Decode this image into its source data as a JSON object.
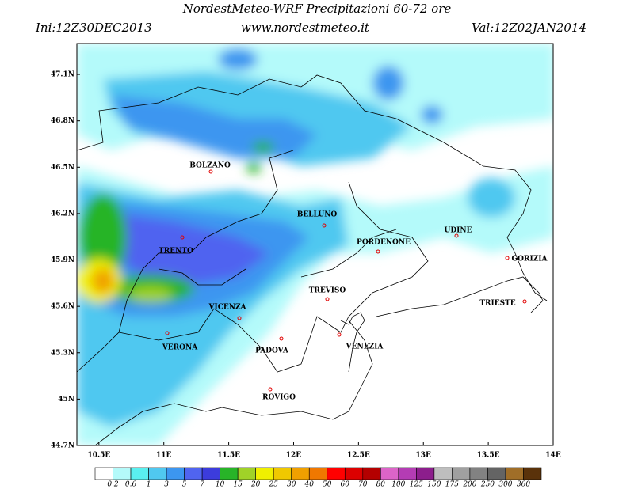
{
  "header": {
    "title": "NordestMeteo-WRF Precipitazioni 60-72 ore",
    "init": "Ini:12Z30DEC2013",
    "url": "www.nordestmeteo.it",
    "valid": "Val:12Z02JAN2014"
  },
  "map": {
    "xlim": [
      10.33,
      14.0
    ],
    "ylim": [
      44.7,
      47.3
    ],
    "xticks": [
      {
        "value": 10.5,
        "label": "10.5E"
      },
      {
        "value": 11,
        "label": "11E"
      },
      {
        "value": 11.5,
        "label": "11.5E"
      },
      {
        "value": 12,
        "label": "12E"
      },
      {
        "value": 12.5,
        "label": "12.5E"
      },
      {
        "value": 13,
        "label": "13E"
      },
      {
        "value": 13.5,
        "label": "13.5E"
      },
      {
        "value": 14,
        "label": "14E"
      }
    ],
    "yticks": [
      {
        "value": 47.1,
        "label": "47.1N"
      },
      {
        "value": 46.8,
        "label": "46.8N"
      },
      {
        "value": 46.5,
        "label": "46.5N"
      },
      {
        "value": 46.2,
        "label": "46.2N"
      },
      {
        "value": 45.9,
        "label": "45.9N"
      },
      {
        "value": 45.6,
        "label": "45.6N"
      },
      {
        "value": 45.3,
        "label": "45.3N"
      },
      {
        "value": 45,
        "label": "45N"
      },
      {
        "value": 44.7,
        "label": "44.7N"
      }
    ],
    "cities": [
      "BOLZANO",
      "TRENTO",
      "BELLUNO",
      "PORDENONE",
      "UDINE",
      "GORIZIA",
      "TRIESTE",
      "TREVISO",
      "VICENZA",
      "VENEZIA",
      "PADOVA",
      "VERONA",
      "ROVIGO"
    ]
  },
  "colorbar": {
    "labels": [
      "0.2",
      "0.6",
      "1",
      "3",
      "5",
      "7",
      "10",
      "15",
      "20",
      "25",
      "30",
      "40",
      "50",
      "60",
      "70",
      "80",
      "100",
      "125",
      "150",
      "175",
      "200",
      "250",
      "300",
      "360"
    ],
    "colors": [
      "#ffffff",
      "#b4fafa",
      "#5af0f0",
      "#50c8f0",
      "#3c96f0",
      "#5064f0",
      "#3c3cdc",
      "#28b428",
      "#a0d228",
      "#f0f000",
      "#f0c800",
      "#f0a000",
      "#f07800",
      "#ff0000",
      "#dc0000",
      "#b40000",
      "#dc64c8",
      "#b43cb4",
      "#8c1e8c",
      "#bebebe",
      "#a0a0a0",
      "#828282",
      "#646464",
      "#a06e28",
      "#5a320a"
    ]
  }
}
